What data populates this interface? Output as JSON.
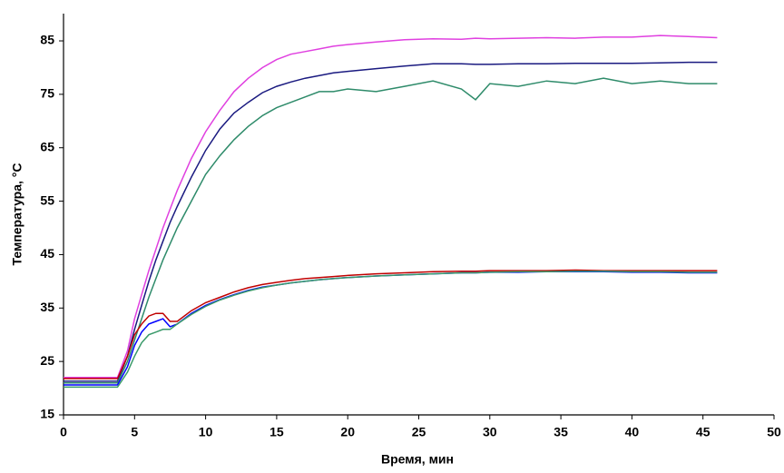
{
  "chart_data": {
    "type": "line",
    "xlabel": "Время, мин",
    "ylabel": "Температура, °С",
    "xlim": [
      0,
      50
    ],
    "xticks": [
      0,
      5,
      10,
      15,
      20,
      25,
      30,
      35,
      40,
      45,
      50
    ],
    "ylim": [
      15,
      90
    ],
    "yticks": [
      15,
      25,
      35,
      45,
      55,
      65,
      75,
      85
    ],
    "grid": false,
    "x": [
      0,
      1,
      2,
      3,
      3.8,
      4.5,
      5,
      5.5,
      6,
      6.5,
      7,
      7.5,
      8,
      9,
      10,
      11,
      12,
      13,
      14,
      15,
      16,
      17,
      18,
      19,
      20,
      22,
      24,
      26,
      28,
      29,
      30,
      32,
      34,
      36,
      38,
      40,
      42,
      44,
      46
    ],
    "series": [
      {
        "color": "#e040e0",
        "values": [
          22,
          22,
          22,
          22,
          22,
          27,
          33,
          37.5,
          42,
          46,
          50,
          53.5,
          57,
          63,
          68,
          72,
          75.5,
          78,
          80,
          81.5,
          82.5,
          83,
          83.5,
          84,
          84.3,
          84.8,
          85.2,
          85.4,
          85.3,
          85.5,
          85.4,
          85.5,
          85.6,
          85.5,
          85.7,
          85.7,
          86,
          85.8,
          85.6
        ]
      },
      {
        "color": "#1a1a80",
        "values": [
          21.3,
          21.3,
          21.3,
          21.3,
          21.3,
          26,
          31,
          35.5,
          40,
          44,
          47.5,
          51,
          54,
          59.5,
          64.5,
          68.5,
          71.5,
          73.5,
          75.3,
          76.5,
          77.3,
          78,
          78.5,
          79,
          79.3,
          79.8,
          80.3,
          80.7,
          80.7,
          80.6,
          80.6,
          80.7,
          80.7,
          80.8,
          80.8,
          80.8,
          80.9,
          81,
          81
        ]
      },
      {
        "color": "#2e8b6a",
        "values": [
          21,
          21,
          21,
          21,
          21,
          25,
          29,
          33,
          37,
          40.5,
          44,
          47,
          50,
          55,
          60,
          63.5,
          66.5,
          69,
          71,
          72.5,
          73.5,
          74.5,
          75.5,
          75.5,
          76,
          75.5,
          76.5,
          77.5,
          76,
          74,
          77,
          76.5,
          77.5,
          77,
          78,
          77,
          77.5,
          77,
          77
        ]
      },
      {
        "color": "#c00000",
        "values": [
          21.8,
          21.8,
          21.8,
          21.8,
          21.8,
          26,
          30,
          32,
          33.5,
          34,
          34,
          32.5,
          32.5,
          34.5,
          36,
          37,
          38,
          38.8,
          39.4,
          39.8,
          40.2,
          40.5,
          40.7,
          40.9,
          41.1,
          41.4,
          41.6,
          41.8,
          41.9,
          41.9,
          42,
          42,
          42,
          42.1,
          42,
          42,
          42,
          42,
          42
        ]
      },
      {
        "color": "#0000ff",
        "values": [
          20.6,
          20.6,
          20.6,
          20.6,
          20.6,
          24,
          28,
          30.5,
          32,
          32.5,
          33,
          31.5,
          32,
          34,
          35.5,
          36.6,
          37.5,
          38.3,
          38.9,
          39.3,
          39.7,
          40,
          40.3,
          40.5,
          40.7,
          41,
          41.2,
          41.4,
          41.6,
          41.6,
          41.7,
          41.7,
          41.8,
          41.8,
          41.8,
          41.7,
          41.7,
          41.6,
          41.6
        ]
      },
      {
        "color": "#3a9a6a",
        "values": [
          20.2,
          20.2,
          20.2,
          20.2,
          20.2,
          23,
          26,
          28.5,
          30,
          30.5,
          31,
          31,
          32,
          33.8,
          35.3,
          36.5,
          37.4,
          38.2,
          38.8,
          39.3,
          39.7,
          40,
          40.3,
          40.5,
          40.7,
          41,
          41.2,
          41.4,
          41.6,
          41.6,
          41.7,
          41.8,
          41.8,
          41.9,
          41.9,
          41.8,
          41.8,
          41.7,
          41.7
        ]
      }
    ]
  }
}
